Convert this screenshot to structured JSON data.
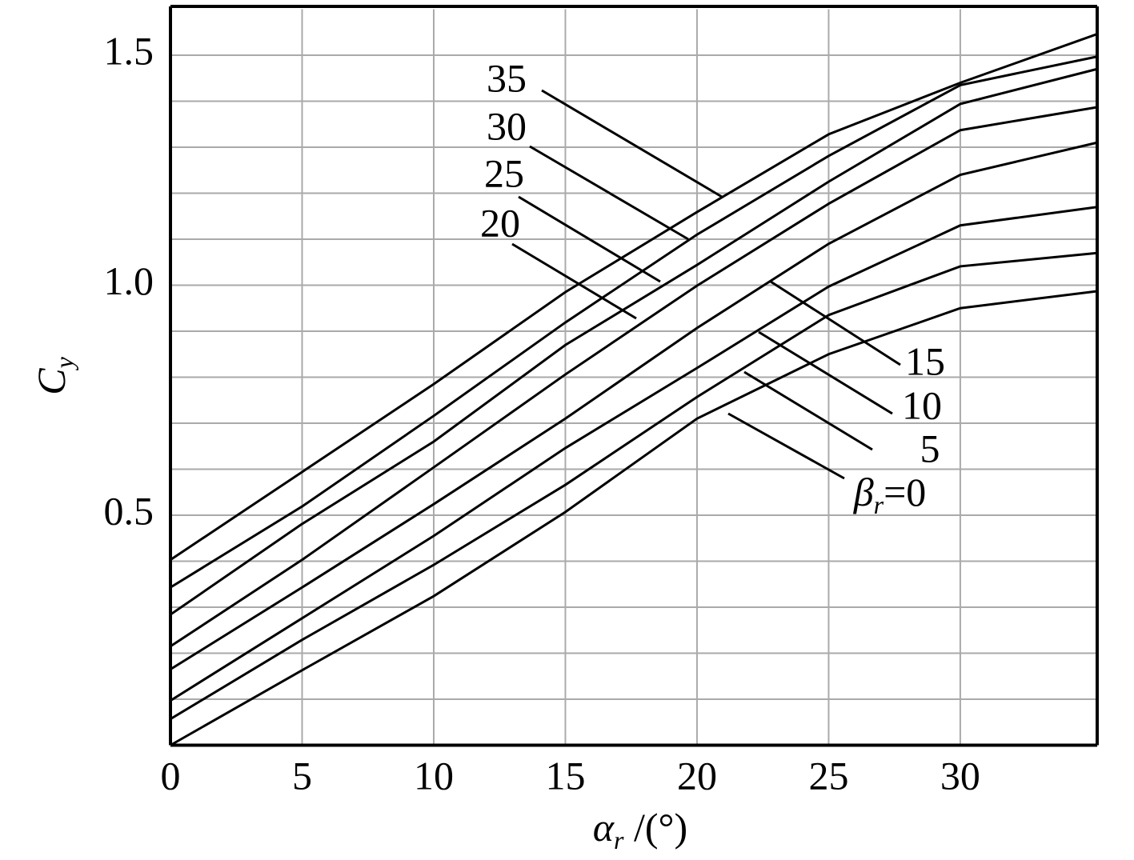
{
  "chart_data": {
    "type": "line",
    "x_label": "αr /(°)",
    "y_label": "Cy",
    "x": [
      0,
      5,
      10,
      15,
      20,
      25,
      30,
      35.2
    ],
    "series": [
      {
        "name": "βr=0",
        "color": "#000000",
        "values": [
          0.0,
          0.163,
          0.324,
          0.507,
          0.71,
          0.85,
          0.95,
          0.987
        ]
      },
      {
        "name": "5",
        "color": "#000000",
        "values": [
          0.057,
          0.229,
          0.392,
          0.566,
          0.757,
          0.935,
          1.041,
          1.07
        ]
      },
      {
        "name": "10",
        "color": "#000000",
        "values": [
          0.097,
          0.276,
          0.455,
          0.646,
          0.82,
          0.997,
          1.13,
          1.17
        ]
      },
      {
        "name": "15",
        "color": "#000000",
        "values": [
          0.165,
          0.343,
          0.524,
          0.71,
          0.907,
          1.09,
          1.24,
          1.31
        ]
      },
      {
        "name": "20",
        "color": "#000000",
        "values": [
          0.215,
          0.403,
          0.604,
          0.806,
          0.999,
          1.177,
          1.337,
          1.387
        ]
      },
      {
        "name": "25",
        "color": "#000000",
        "values": [
          0.284,
          0.481,
          0.66,
          0.87,
          1.044,
          1.225,
          1.394,
          1.47
        ]
      },
      {
        "name": "30",
        "color": "#000000",
        "values": [
          0.343,
          0.519,
          0.716,
          0.919,
          1.11,
          1.281,
          1.435,
          1.497
        ]
      },
      {
        "name": "35",
        "color": "#000000",
        "values": [
          0.403,
          0.594,
          0.785,
          0.985,
          1.159,
          1.328,
          1.44,
          1.546
        ]
      }
    ],
    "xlim": [
      0,
      35.2
    ],
    "ylim": [
      0,
      1.6
    ],
    "xticks": [
      0,
      5,
      10,
      15,
      20,
      25,
      30
    ],
    "yticks": [
      0.5,
      {
        "value": 1,
        "label": "1.0"
      },
      1.5
    ],
    "y_minor_ticks": [
      0.1,
      0.2,
      0.3,
      0.4,
      0.6,
      0.7,
      0.8,
      0.9,
      1.1,
      1.2,
      1.3,
      1.4
    ],
    "grid": true
  }
}
